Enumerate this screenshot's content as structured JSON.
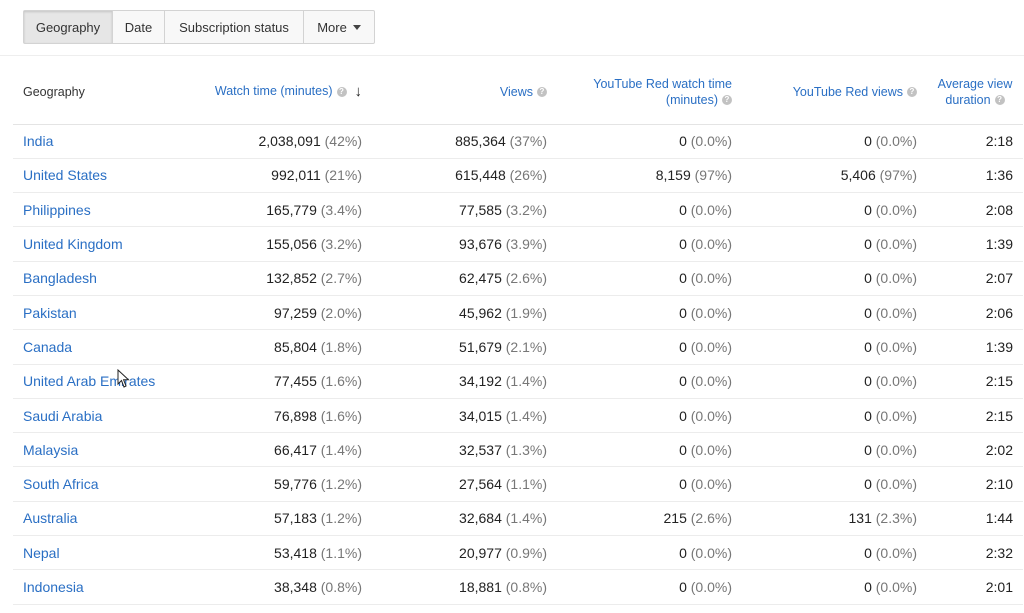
{
  "tabs": [
    {
      "label": "Geography",
      "active": true
    },
    {
      "label": "Date",
      "active": false
    },
    {
      "label": "Subscription status",
      "active": false
    },
    {
      "label": "More",
      "active": false
    }
  ],
  "columns": {
    "geography": "Geography",
    "watch_time": "Watch time (minutes)",
    "views": "Views",
    "red_watch_time": "YouTube Red watch time (minutes)",
    "red_views": "YouTube Red views",
    "avg_duration": "Average view duration"
  },
  "rows": [
    {
      "geo": "India",
      "watch": "2,038,091",
      "watch_pct": "(42%)",
      "views": "885,364",
      "views_pct": "(37%)",
      "red_watch": "0",
      "red_watch_pct": "(0.0%)",
      "red_views": "0",
      "red_views_pct": "(0.0%)",
      "avg": "2:18"
    },
    {
      "geo": "United States",
      "watch": "992,011",
      "watch_pct": "(21%)",
      "views": "615,448",
      "views_pct": "(26%)",
      "red_watch": "8,159",
      "red_watch_pct": "(97%)",
      "red_views": "5,406",
      "red_views_pct": "(97%)",
      "avg": "1:36"
    },
    {
      "geo": "Philippines",
      "watch": "165,779",
      "watch_pct": "(3.4%)",
      "views": "77,585",
      "views_pct": "(3.2%)",
      "red_watch": "0",
      "red_watch_pct": "(0.0%)",
      "red_views": "0",
      "red_views_pct": "(0.0%)",
      "avg": "2:08"
    },
    {
      "geo": "United Kingdom",
      "watch": "155,056",
      "watch_pct": "(3.2%)",
      "views": "93,676",
      "views_pct": "(3.9%)",
      "red_watch": "0",
      "red_watch_pct": "(0.0%)",
      "red_views": "0",
      "red_views_pct": "(0.0%)",
      "avg": "1:39"
    },
    {
      "geo": "Bangladesh",
      "watch": "132,852",
      "watch_pct": "(2.7%)",
      "views": "62,475",
      "views_pct": "(2.6%)",
      "red_watch": "0",
      "red_watch_pct": "(0.0%)",
      "red_views": "0",
      "red_views_pct": "(0.0%)",
      "avg": "2:07"
    },
    {
      "geo": "Pakistan",
      "watch": "97,259",
      "watch_pct": "(2.0%)",
      "views": "45,962",
      "views_pct": "(1.9%)",
      "red_watch": "0",
      "red_watch_pct": "(0.0%)",
      "red_views": "0",
      "red_views_pct": "(0.0%)",
      "avg": "2:06"
    },
    {
      "geo": "Canada",
      "watch": "85,804",
      "watch_pct": "(1.8%)",
      "views": "51,679",
      "views_pct": "(2.1%)",
      "red_watch": "0",
      "red_watch_pct": "(0.0%)",
      "red_views": "0",
      "red_views_pct": "(0.0%)",
      "avg": "1:39"
    },
    {
      "geo": "United Arab Emirates",
      "watch": "77,455",
      "watch_pct": "(1.6%)",
      "views": "34,192",
      "views_pct": "(1.4%)",
      "red_watch": "0",
      "red_watch_pct": "(0.0%)",
      "red_views": "0",
      "red_views_pct": "(0.0%)",
      "avg": "2:15"
    },
    {
      "geo": "Saudi Arabia",
      "watch": "76,898",
      "watch_pct": "(1.6%)",
      "views": "34,015",
      "views_pct": "(1.4%)",
      "red_watch": "0",
      "red_watch_pct": "(0.0%)",
      "red_views": "0",
      "red_views_pct": "(0.0%)",
      "avg": "2:15"
    },
    {
      "geo": "Malaysia",
      "watch": "66,417",
      "watch_pct": "(1.4%)",
      "views": "32,537",
      "views_pct": "(1.3%)",
      "red_watch": "0",
      "red_watch_pct": "(0.0%)",
      "red_views": "0",
      "red_views_pct": "(0.0%)",
      "avg": "2:02"
    },
    {
      "geo": "South Africa",
      "watch": "59,776",
      "watch_pct": "(1.2%)",
      "views": "27,564",
      "views_pct": "(1.1%)",
      "red_watch": "0",
      "red_watch_pct": "(0.0%)",
      "red_views": "0",
      "red_views_pct": "(0.0%)",
      "avg": "2:10"
    },
    {
      "geo": "Australia",
      "watch": "57,183",
      "watch_pct": "(1.2%)",
      "views": "32,684",
      "views_pct": "(1.4%)",
      "red_watch": "215",
      "red_watch_pct": "(2.6%)",
      "red_views": "131",
      "red_views_pct": "(2.3%)",
      "avg": "1:44"
    },
    {
      "geo": "Nepal",
      "watch": "53,418",
      "watch_pct": "(1.1%)",
      "views": "20,977",
      "views_pct": "(0.9%)",
      "red_watch": "0",
      "red_watch_pct": "(0.0%)",
      "red_views": "0",
      "red_views_pct": "(0.0%)",
      "avg": "2:32"
    },
    {
      "geo": "Indonesia",
      "watch": "38,348",
      "watch_pct": "(0.8%)",
      "views": "18,881",
      "views_pct": "(0.8%)",
      "red_watch": "0",
      "red_watch_pct": "(0.0%)",
      "red_views": "0",
      "red_views_pct": "(0.0%)",
      "avg": "2:01"
    }
  ],
  "icons": {
    "help": "help-icon",
    "sort": "sort-descending-icon",
    "cursor": "mouse-cursor-icon",
    "dropdown": "caret-down-icon"
  },
  "colors": {
    "link": "#2a6fc4",
    "muted": "#777777",
    "active_tab": "#e6e6e6"
  }
}
